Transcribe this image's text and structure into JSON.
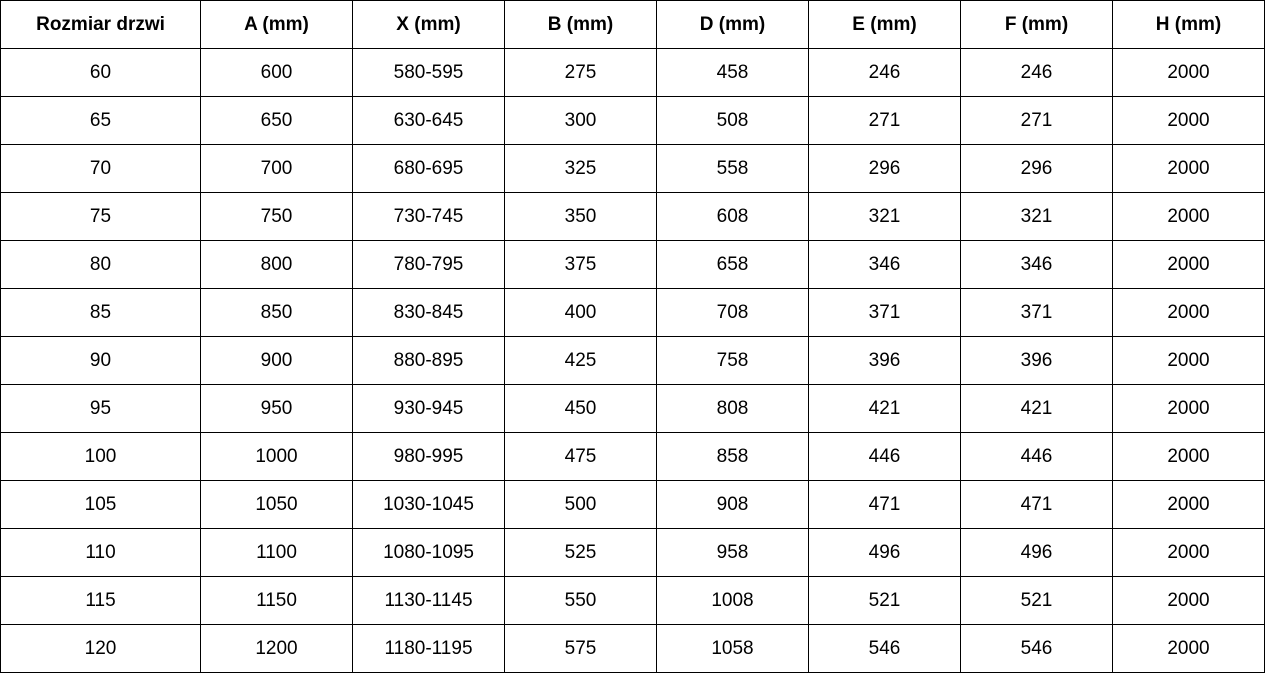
{
  "table": {
    "header": [
      "Rozmiar drzwi",
      "A (mm)",
      "X (mm)",
      "B (mm)",
      "D (mm)",
      "E (mm)",
      "F (mm)",
      "H (mm)"
    ],
    "rows": [
      [
        60,
        600,
        "580-595",
        275,
        458,
        246,
        246,
        2000
      ],
      [
        65,
        650,
        "630-645",
        300,
        508,
        271,
        271,
        2000
      ],
      [
        70,
        700,
        "680-695",
        325,
        558,
        296,
        296,
        2000
      ],
      [
        75,
        750,
        "730-745",
        350,
        608,
        321,
        321,
        2000
      ],
      [
        80,
        800,
        "780-795",
        375,
        658,
        346,
        346,
        2000
      ],
      [
        85,
        850,
        "830-845",
        400,
        708,
        371,
        371,
        2000
      ],
      [
        90,
        900,
        "880-895",
        425,
        758,
        396,
        396,
        2000
      ],
      [
        95,
        950,
        "930-945",
        450,
        808,
        421,
        421,
        2000
      ],
      [
        100,
        1000,
        "980-995",
        475,
        858,
        446,
        446,
        2000
      ],
      [
        105,
        1050,
        "1030-1045",
        500,
        908,
        471,
        471,
        2000
      ],
      [
        110,
        1100,
        "1080-1095",
        525,
        958,
        496,
        496,
        2000
      ],
      [
        115,
        1150,
        "1130-1145",
        550,
        1008,
        521,
        521,
        2000
      ],
      [
        120,
        1200,
        "1180-1195",
        575,
        1058,
        546,
        546,
        2000
      ]
    ]
  }
}
